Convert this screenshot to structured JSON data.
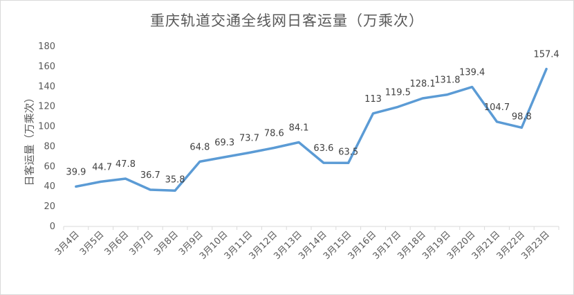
{
  "chart_data": {
    "type": "line",
    "title": "重庆轨道交通全线网日客运量（万乘次）",
    "xlabel": "",
    "ylabel": "日客运量（万乘次）",
    "ylim": [
      0,
      180
    ],
    "yticks": [
      0,
      20,
      40,
      60,
      80,
      100,
      120,
      140,
      160,
      180
    ],
    "grid": false,
    "legend": "none",
    "categories": [
      "3月4日",
      "3月5日",
      "3月6日",
      "3月7日",
      "3月8日",
      "3月9日",
      "3月10日",
      "3月11日",
      "3月12日",
      "3月13日",
      "3月14日",
      "3月15日",
      "3月16日",
      "3月17日",
      "3月18日",
      "3月19日",
      "3月20日",
      "3月21日",
      "3月22日",
      "3月23日"
    ],
    "series": [
      {
        "values": [
          39.9,
          44.7,
          47.8,
          36.7,
          35.8,
          64.8,
          69.3,
          73.7,
          78.6,
          84.1,
          63.6,
          63.5,
          113,
          119.5,
          128.1,
          131.8,
          139.4,
          104.7,
          98.8,
          157.4
        ],
        "color": "#5b9bd5"
      }
    ]
  }
}
